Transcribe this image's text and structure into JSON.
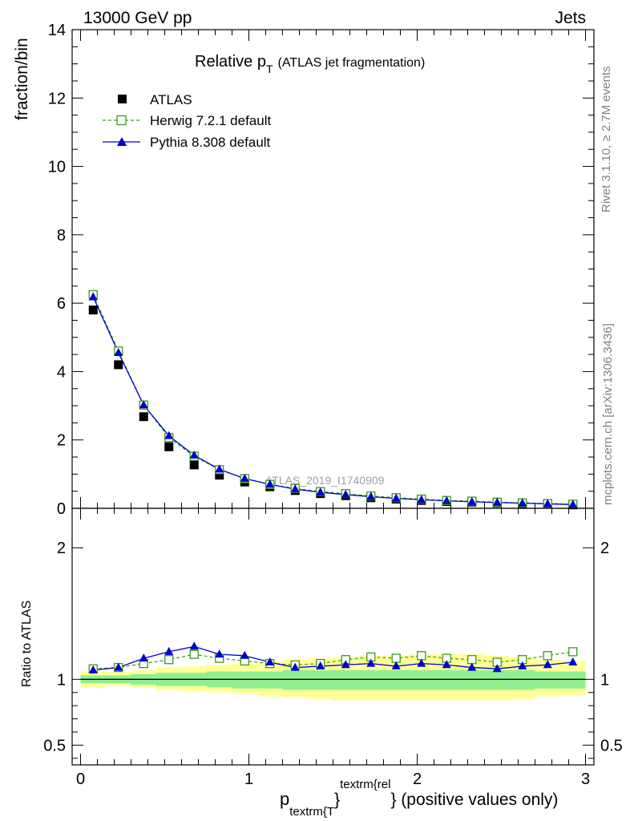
{
  "header": {
    "left": "13000 GeV pp",
    "right": "Jets"
  },
  "side_labels": {
    "rivet": "Rivet 3.1.10, ≥ 2.7M events",
    "mcplots": "mcplots.cern.ch [arXiv:1306.3436]"
  },
  "title": {
    "main": "Relative p",
    "sub": "T",
    "paren": "(ATLAS jet fragmentation)"
  },
  "watermark": "ATLAS_2019_I1740909",
  "xlabel": {
    "p": "p",
    "sub": "textrm{T",
    "sup": "textrm{rel",
    "suffix": "} (positive values only)",
    "mid": "}"
  },
  "colors": {
    "atlas": "#000000",
    "herwig": "#3a9a18",
    "pythia": "#0000cc",
    "band_inner": "#90f090",
    "band_outer": "#ffff99"
  },
  "chart_data": [
    {
      "type": "line",
      "panel": "main",
      "ylabel": "fraction/bin",
      "xlim": [
        -0.05,
        3.05
      ],
      "ylim": [
        0,
        14
      ],
      "yticks": [
        "0",
        "2",
        "4",
        "6",
        "8",
        "10",
        "12",
        "14"
      ],
      "legend_position": "top-left",
      "x": [
        0.075,
        0.225,
        0.375,
        0.525,
        0.675,
        0.825,
        0.975,
        1.125,
        1.275,
        1.425,
        1.575,
        1.725,
        1.875,
        2.025,
        2.175,
        2.325,
        2.475,
        2.625,
        2.775,
        2.925
      ],
      "series": [
        {
          "name": "ATLAS",
          "marker": "square",
          "values": [
            5.8,
            4.2,
            2.68,
            1.8,
            1.27,
            0.97,
            0.77,
            0.63,
            0.52,
            0.43,
            0.37,
            0.31,
            0.27,
            0.23,
            0.2,
            0.18,
            0.16,
            0.14,
            0.12,
            0.1
          ]
        },
        {
          "name": "Herwig 7.2.1 default",
          "marker": "open-square",
          "dashed": true,
          "values": [
            6.25,
            4.6,
            3.02,
            2.07,
            1.52,
            1.13,
            0.87,
            0.7,
            0.58,
            0.49,
            0.43,
            0.36,
            0.31,
            0.27,
            0.23,
            0.21,
            0.18,
            0.16,
            0.14,
            0.12
          ]
        },
        {
          "name": "Pythia 8.308 default",
          "marker": "triangle",
          "values": [
            6.18,
            4.55,
            3.02,
            2.12,
            1.55,
            1.14,
            0.87,
            0.7,
            0.56,
            0.47,
            0.4,
            0.34,
            0.29,
            0.25,
            0.22,
            0.19,
            0.17,
            0.15,
            0.13,
            0.11
          ]
        }
      ]
    },
    {
      "type": "line",
      "panel": "ratio",
      "ylabel": "Ratio to ATLAS",
      "xlim": [
        -0.05,
        3.05
      ],
      "ylim": [
        0.35,
        2.3
      ],
      "yticks": [
        "0.5",
        "1",
        "2"
      ],
      "xticks": [
        "0",
        "1",
        "2",
        "3"
      ],
      "x": [
        0.075,
        0.225,
        0.375,
        0.525,
        0.675,
        0.825,
        0.975,
        1.125,
        1.275,
        1.425,
        1.575,
        1.725,
        1.875,
        2.025,
        2.175,
        2.325,
        2.475,
        2.625,
        2.775,
        2.925
      ],
      "series": [
        {
          "name": "Herwig 7.2.1 default",
          "marker": "open-square",
          "dashed": true,
          "values": [
            1.08,
            1.09,
            1.12,
            1.15,
            1.19,
            1.16,
            1.14,
            1.12,
            1.11,
            1.12,
            1.15,
            1.17,
            1.16,
            1.18,
            1.16,
            1.15,
            1.13,
            1.15,
            1.18,
            1.21
          ]
        },
        {
          "name": "Pythia 8.308 default",
          "marker": "triangle",
          "values": [
            1.07,
            1.09,
            1.16,
            1.21,
            1.25,
            1.19,
            1.18,
            1.13,
            1.09,
            1.1,
            1.11,
            1.12,
            1.1,
            1.12,
            1.11,
            1.09,
            1.08,
            1.1,
            1.11,
            1.13
          ]
        }
      ],
      "bands": {
        "x_edges": [
          0.0,
          0.15,
          0.3,
          0.45,
          0.6,
          0.75,
          0.9,
          1.05,
          1.2,
          1.35,
          1.5,
          1.65,
          1.8,
          1.95,
          2.1,
          2.25,
          2.4,
          2.55,
          2.7,
          2.85,
          3.0
        ],
        "inner_lo": [
          0.97,
          0.97,
          0.96,
          0.95,
          0.95,
          0.94,
          0.93,
          0.93,
          0.92,
          0.92,
          0.92,
          0.92,
          0.92,
          0.92,
          0.92,
          0.92,
          0.92,
          0.92,
          0.93,
          0.93
        ],
        "inner_hi": [
          1.03,
          1.03,
          1.04,
          1.05,
          1.05,
          1.06,
          1.06,
          1.06,
          1.07,
          1.07,
          1.07,
          1.07,
          1.07,
          1.07,
          1.07,
          1.07,
          1.07,
          1.07,
          1.06,
          1.06
        ],
        "outer_lo": [
          0.94,
          0.95,
          0.94,
          0.92,
          0.91,
          0.9,
          0.89,
          0.87,
          0.86,
          0.85,
          0.84,
          0.84,
          0.84,
          0.84,
          0.84,
          0.84,
          0.84,
          0.85,
          0.87,
          0.88
        ],
        "outer_hi": [
          1.06,
          1.06,
          1.07,
          1.09,
          1.1,
          1.11,
          1.12,
          1.13,
          1.15,
          1.16,
          1.17,
          1.18,
          1.18,
          1.19,
          1.19,
          1.19,
          1.18,
          1.17,
          1.15,
          1.14
        ]
      }
    }
  ]
}
